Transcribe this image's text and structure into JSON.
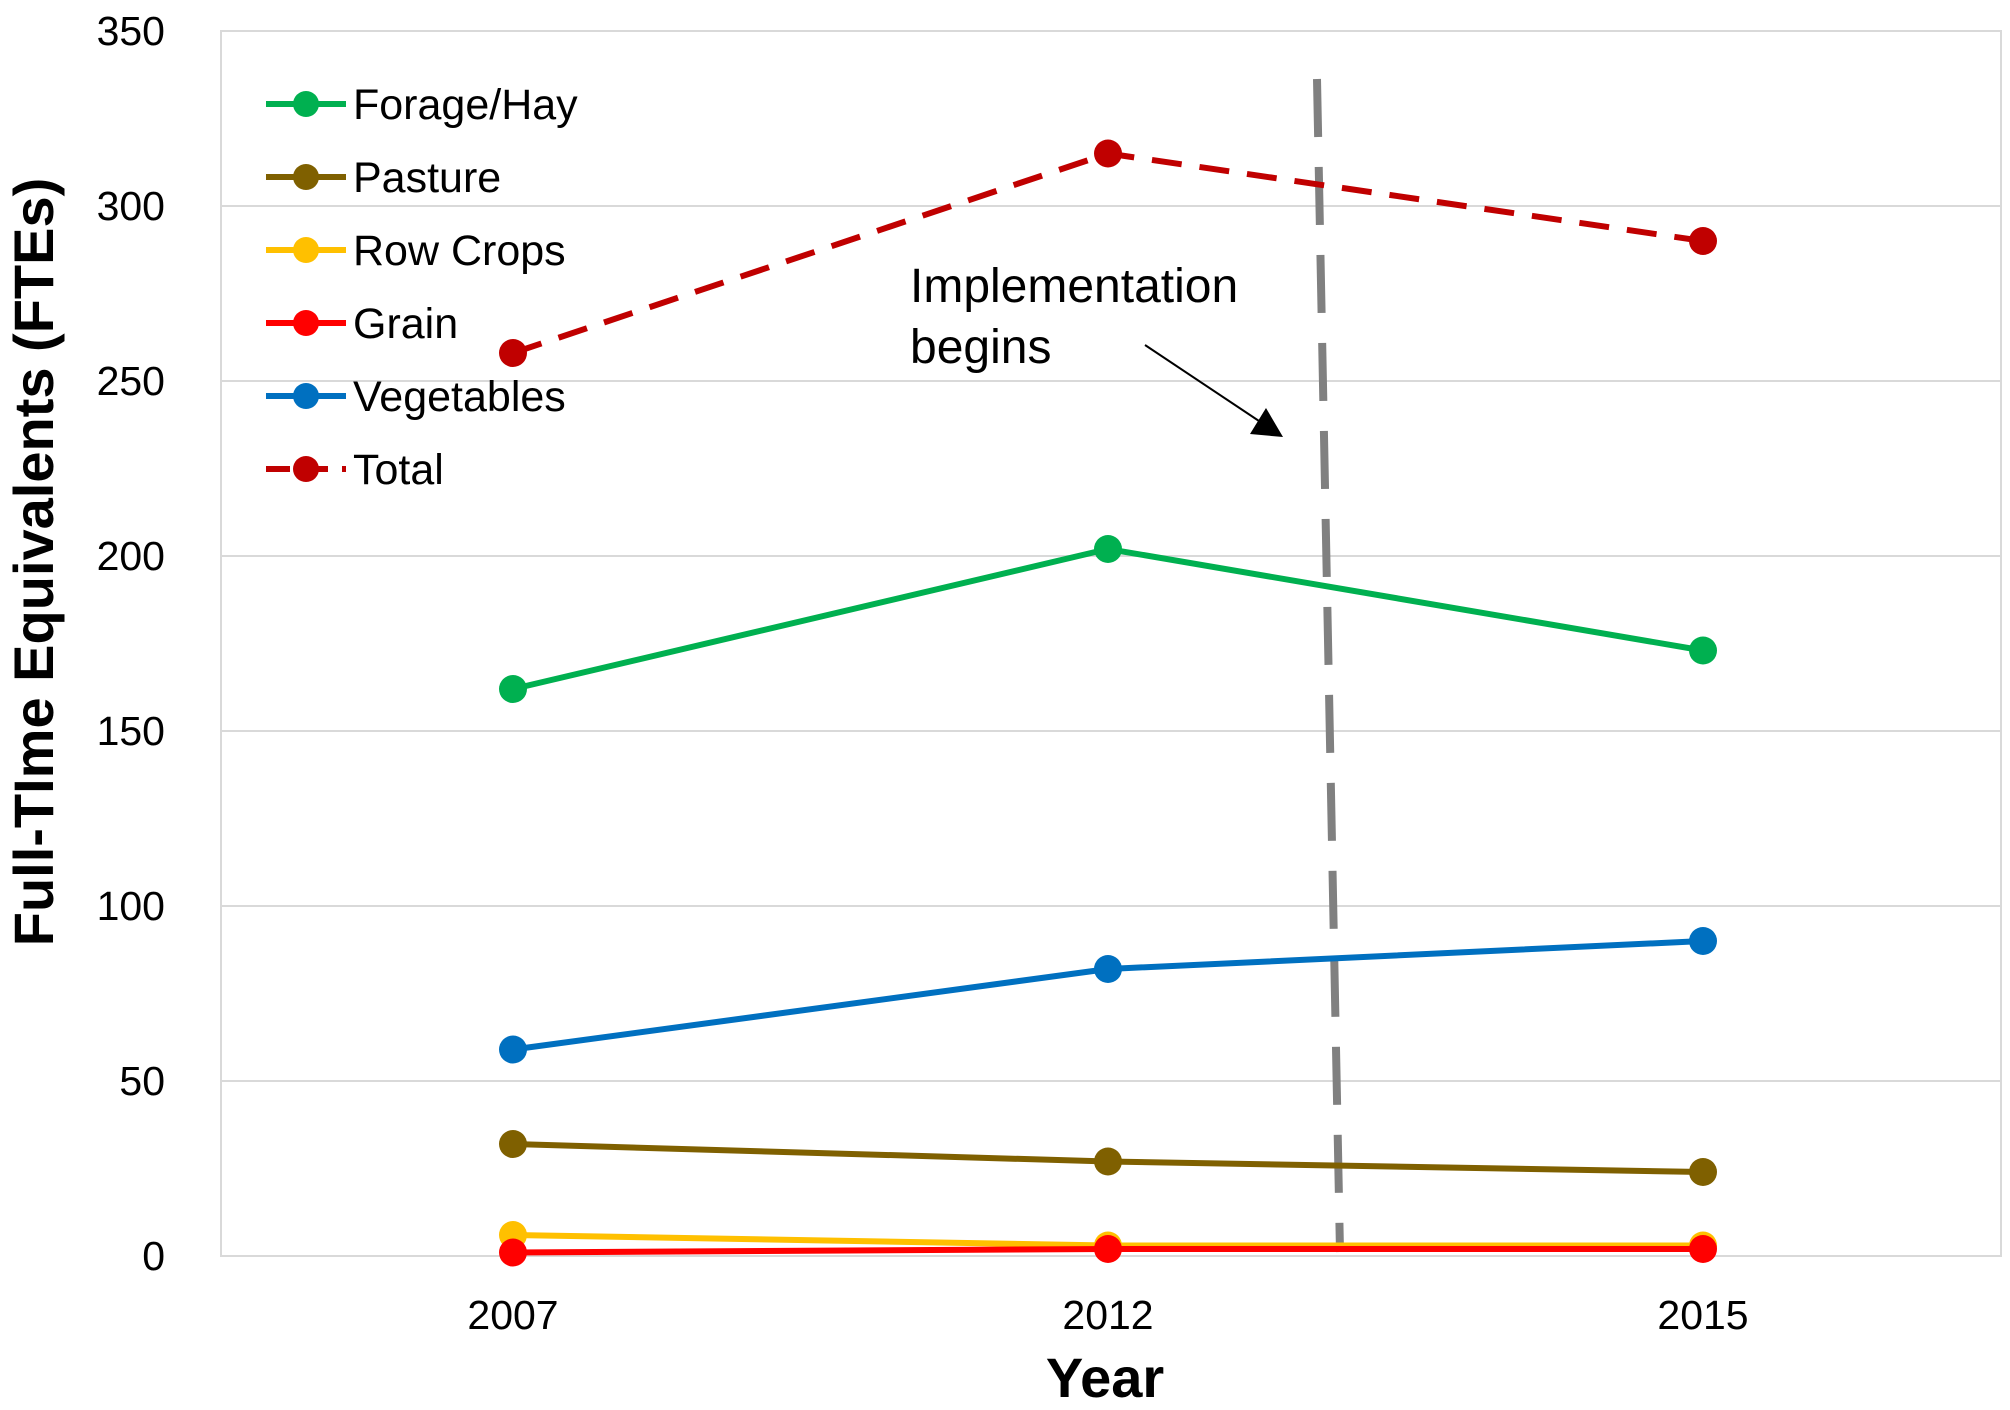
{
  "chart_data": {
    "type": "line",
    "x": [
      "2007",
      "2012",
      "2015"
    ],
    "xlabel": "Year",
    "ylabel": "Full-TIme Equivalents (FTEs)",
    "ylim": [
      0,
      350
    ],
    "yticks": [
      "0",
      "50",
      "100",
      "150",
      "200",
      "250",
      "300",
      "350"
    ],
    "grid": "horizontal",
    "legend_position": "top-left",
    "series": [
      {
        "name": "Forage/Hay",
        "values": [
          162,
          202,
          173
        ],
        "color": "#00b050",
        "dashed": false
      },
      {
        "name": "Pasture",
        "values": [
          32,
          27,
          24
        ],
        "color": "#7f6000",
        "dashed": false
      },
      {
        "name": "Row Crops",
        "values": [
          6,
          3,
          3
        ],
        "color": "#ffc000",
        "dashed": false
      },
      {
        "name": "Grain",
        "values": [
          1,
          2,
          2
        ],
        "color": "#ff0000",
        "dashed": false
      },
      {
        "name": "Vegetables",
        "values": [
          59,
          82,
          90
        ],
        "color": "#0070c0",
        "dashed": false
      },
      {
        "name": "Total",
        "values": [
          258,
          315,
          290
        ],
        "color": "#c00000",
        "dashed": true
      }
    ],
    "annotation": {
      "lines": [
        "Implementation",
        "begins"
      ],
      "marker": "vertical dashed line between 2012 and 2015",
      "marker_color": "#808080"
    }
  }
}
